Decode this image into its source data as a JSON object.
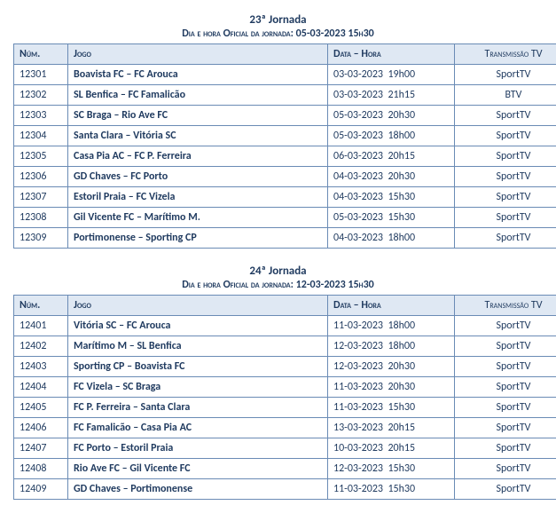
{
  "columns": {
    "num": "Núm.",
    "jogo": "Jogo",
    "data": "Data – Hora",
    "tv": "Transmissão TV"
  },
  "sub_prefix": "Dia e hora Oficial da jornada: ",
  "jornadas": [
    {
      "title": "23ª Jornada",
      "official": "05-03-2023 15h30",
      "rows": [
        {
          "num": "12301",
          "jogo": "Boavista FC – FC Arouca",
          "date": "03-03-2023",
          "time": "19h00",
          "tv": "SportTV"
        },
        {
          "num": "12302",
          "jogo": "SL Benfica – FC Famalicão",
          "date": "03-03-2023",
          "time": "21h15",
          "tv": "BTV"
        },
        {
          "num": "12303",
          "jogo": "SC Braga – Rio Ave FC",
          "date": "05-03-2023",
          "time": "20h30",
          "tv": "SportTV"
        },
        {
          "num": "12304",
          "jogo": "Santa Clara – Vitória SC",
          "date": "05-03-2023",
          "time": "18h00",
          "tv": "SportTV"
        },
        {
          "num": "12305",
          "jogo": "Casa Pia AC – FC P. Ferreira",
          "date": "06-03-2023",
          "time": "20h15",
          "tv": "SportTV"
        },
        {
          "num": "12306",
          "jogo": "GD Chaves – FC Porto",
          "date": "04-03-2023",
          "time": "20h30",
          "tv": "SportTV"
        },
        {
          "num": "12307",
          "jogo": "Estoril Praia – FC Vizela",
          "date": "04-03-2023",
          "time": "15h30",
          "tv": "SportTV"
        },
        {
          "num": "12308",
          "jogo": "Gil Vicente FC – Marítimo M.",
          "date": "05-03-2023",
          "time": "15h30",
          "tv": "SportTV"
        },
        {
          "num": "12309",
          "jogo": "Portimonense – Sporting CP",
          "date": "04-03-2023",
          "time": "18h00",
          "tv": "SportTV"
        }
      ]
    },
    {
      "title": "24ª Jornada",
      "official": "12-03-2023 15h30",
      "rows": [
        {
          "num": "12401",
          "jogo": "Vitória SC – FC Arouca",
          "date": "11-03-2023",
          "time": "18h00",
          "tv": "SportTV"
        },
        {
          "num": "12402",
          "jogo": "Marítimo M – SL Benfica",
          "date": "12-03-2023",
          "time": "18h00",
          "tv": "SportTV"
        },
        {
          "num": "12403",
          "jogo": "Sporting CP – Boavista FC",
          "date": "12-03-2023",
          "time": "20h30",
          "tv": "SportTV"
        },
        {
          "num": "12404",
          "jogo": "FC Vizela – SC Braga",
          "date": "11-03-2023",
          "time": "20h30",
          "tv": "SportTV"
        },
        {
          "num": "12405",
          "jogo": "FC P. Ferreira – Santa Clara",
          "date": "11-03-2023",
          "time": "15h30",
          "tv": "SportTV"
        },
        {
          "num": "12406",
          "jogo": "FC Famalicão – Casa Pia AC",
          "date": "13-03-2023",
          "time": "20h15",
          "tv": "SportTV"
        },
        {
          "num": "12407",
          "jogo": "FC Porto – Estoril Praia",
          "date": "10-03-2023",
          "time": "20h15",
          "tv": "SportTV"
        },
        {
          "num": "12408",
          "jogo": "Rio Ave FC – Gil Vicente FC",
          "date": "12-03-2023",
          "time": "15h30",
          "tv": "SportTV"
        },
        {
          "num": "12409",
          "jogo": "GD Chaves – Portimonense",
          "date": "11-03-2023",
          "time": "15h30",
          "tv": "SportTV"
        }
      ]
    }
  ]
}
